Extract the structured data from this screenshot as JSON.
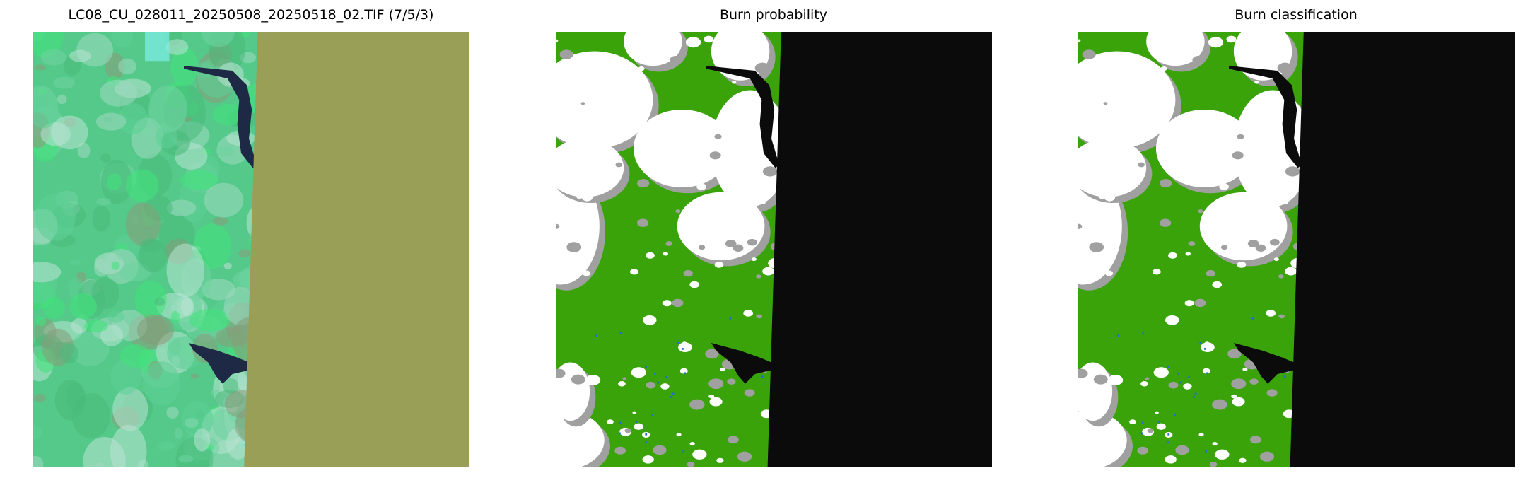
{
  "panels": [
    {
      "title": "LC08_CU_028011_20250508_20250518_02.TIF (7/5/3)",
      "kind": "false-color-composite"
    },
    {
      "title": "Burn probability",
      "kind": "probability-map"
    },
    {
      "title": "Burn classification",
      "kind": "classification-map"
    }
  ],
  "colors": {
    "nodata_composite": "#9a9f57",
    "nodata_map": "#0b0b0b",
    "vegetation_green": "#3aa30a",
    "cloud_white": "#ffffff",
    "cloud_shadow_gray": "#a0a0a0",
    "water": "#0b0b0b",
    "burn_blue": "#1f6fd0"
  }
}
